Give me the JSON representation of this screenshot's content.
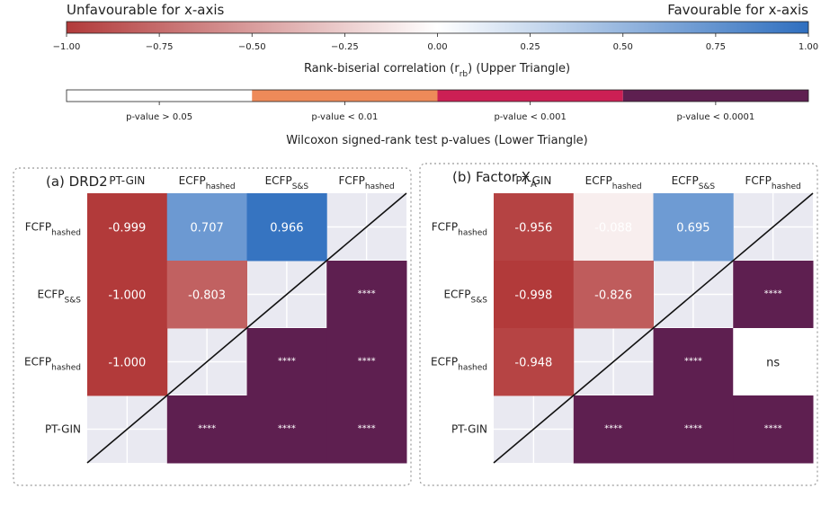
{
  "colorbar": {
    "left_label": "Unfavourable for x-axis",
    "right_label": "Favourable for x-axis",
    "ticks": [
      "−1.00",
      "−0.75",
      "−0.50",
      "−0.25",
      "0.00",
      "0.25",
      "0.50",
      "0.75",
      "1.00"
    ],
    "title_main": "Rank-biserial correlation (r",
    "title_sub": "rb",
    "title_tail": ") (Upper Triangle)",
    "color_low": "#b23a3a",
    "color_mid": "#ffffff",
    "color_high": "#2f6fbf"
  },
  "pvalue_bar": {
    "title": "Wilcoxon signed-rank test p-values (Lower Triangle)",
    "bins": [
      {
        "label": "p-value > 0.05",
        "color": "#ffffff"
      },
      {
        "label": "p-value < 0.01",
        "color": "#ee8a59"
      },
      {
        "label": "p-value < 0.001",
        "color": "#cc1f54"
      },
      {
        "label": "p-value < 0.0001",
        "color": "#5e1f50"
      }
    ]
  },
  "colors": {
    "empty_cell": "#e9e9f1",
    "text_light": "#ffffff",
    "text_dark": "#222222"
  },
  "chart_data": [
    {
      "type": "heatmap",
      "title_main": "(a) DRD2",
      "title_sub": "",
      "columns": [
        {
          "main": "PT-GIN",
          "sub": ""
        },
        {
          "main": "ECFP",
          "sub": "hashed"
        },
        {
          "main": "ECFP",
          "sub": "S&S"
        },
        {
          "main": "FCFP",
          "sub": "hashed"
        }
      ],
      "rows": [
        {
          "main": "FCFP",
          "sub": "hashed"
        },
        {
          "main": "ECFP",
          "sub": "S&S"
        },
        {
          "main": "ECFP",
          "sub": "hashed"
        },
        {
          "main": "PT-GIN",
          "sub": ""
        }
      ],
      "upper_values": [
        [
          -0.999,
          0.707,
          0.966,
          null
        ],
        [
          -1.0,
          -0.803,
          null,
          null
        ],
        [
          -1.0,
          null,
          null,
          null
        ],
        [
          null,
          null,
          null,
          null
        ]
      ],
      "upper_labels": [
        [
          "-0.999",
          "0.707",
          "0.966",
          ""
        ],
        [
          "-1.000",
          "-0.803",
          "",
          ""
        ],
        [
          "-1.000",
          "",
          "",
          ""
        ],
        [
          "",
          "",
          "",
          ""
        ]
      ],
      "lower_labels": [
        [
          "",
          "",
          "",
          ""
        ],
        [
          "",
          "",
          "",
          "****"
        ],
        [
          "",
          "",
          "****",
          "****"
        ],
        [
          "",
          "****",
          "****",
          "****"
        ]
      ],
      "lower_bins": [
        [
          null,
          null,
          null,
          null
        ],
        [
          null,
          null,
          null,
          3
        ],
        [
          null,
          null,
          3,
          3
        ],
        [
          null,
          3,
          3,
          3
        ]
      ]
    },
    {
      "type": "heatmap",
      "title_main": "(b) Factor X",
      "title_sub": "A",
      "columns": [
        {
          "main": "PT-GIN",
          "sub": ""
        },
        {
          "main": "ECFP",
          "sub": "hashed"
        },
        {
          "main": "ECFP",
          "sub": "S&S"
        },
        {
          "main": "FCFP",
          "sub": "hashed"
        }
      ],
      "rows": [
        {
          "main": "FCFP",
          "sub": "hashed"
        },
        {
          "main": "ECFP",
          "sub": "S&S"
        },
        {
          "main": "ECFP",
          "sub": "hashed"
        },
        {
          "main": "PT-GIN",
          "sub": ""
        }
      ],
      "upper_values": [
        [
          -0.956,
          -0.088,
          0.695,
          null
        ],
        [
          -0.998,
          -0.826,
          null,
          null
        ],
        [
          -0.948,
          null,
          null,
          null
        ],
        [
          null,
          null,
          null,
          null
        ]
      ],
      "upper_labels": [
        [
          "-0.956",
          "-0.088",
          "0.695",
          ""
        ],
        [
          "-0.998",
          "-0.826",
          "",
          ""
        ],
        [
          "-0.948",
          "",
          "",
          ""
        ],
        [
          "",
          "",
          "",
          ""
        ]
      ],
      "lower_labels": [
        [
          "",
          "",
          "",
          ""
        ],
        [
          "",
          "",
          "",
          "****"
        ],
        [
          "",
          "",
          "****",
          "ns"
        ],
        [
          "",
          "****",
          "****",
          "****"
        ]
      ],
      "lower_bins": [
        [
          null,
          null,
          null,
          null
        ],
        [
          null,
          null,
          null,
          3
        ],
        [
          null,
          null,
          3,
          0
        ],
        [
          null,
          3,
          3,
          3
        ]
      ]
    }
  ]
}
